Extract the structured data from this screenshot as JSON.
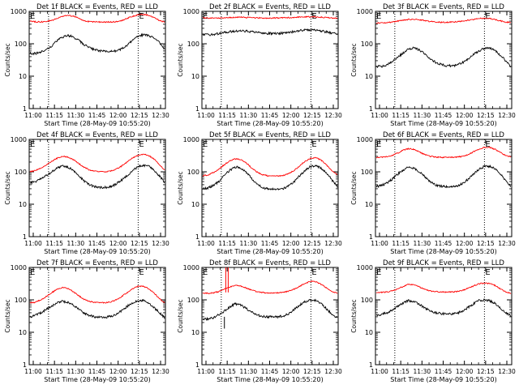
{
  "figure": {
    "background": "#ffffff",
    "colors": {
      "events": "#000000",
      "lld": "#ff0000",
      "axes": "#000000"
    }
  },
  "chart_data": [
    {
      "type": "line",
      "title": "Det 1f BLACK = Events, RED = LLD",
      "xlabel": "Start Time (28-May-09 10:55:20)",
      "ylabel": "Counts/sec",
      "xlim": [
        0,
        100
      ],
      "ylim": [
        1,
        1000
      ],
      "yscale": "log",
      "x_ticks": [
        "11:00",
        "11:15",
        "11:30",
        "11:45",
        "12:00",
        "12:15",
        "12:30"
      ],
      "y_ticks": [
        "1",
        "10",
        "100",
        "1000"
      ],
      "marker_label": "E",
      "markers": [
        14.2,
        80.0
      ],
      "series": [
        {
          "name": "Events",
          "color": "#000000",
          "values": [
            50,
            50,
            55,
            65,
            85,
            120,
            160,
            180,
            165,
            130,
            95,
            75,
            65,
            60,
            58,
            57,
            60,
            70,
            90,
            125,
            165,
            190,
            180,
            150,
            110,
            70
          ]
        },
        {
          "name": "LLD",
          "color": "#ff0000",
          "values": [
            500,
            480,
            470,
            490,
            520,
            600,
            700,
            760,
            710,
            620,
            520,
            480,
            470,
            470,
            470,
            470,
            480,
            520,
            600,
            700,
            780,
            800,
            760,
            650,
            520,
            470
          ]
        }
      ]
    },
    {
      "type": "line",
      "title": "Det 2f BLACK = Events, RED = LLD",
      "xlabel": "Start Time (28-May-09 10:55:20)",
      "ylabel": "Counts/sec",
      "xlim": [
        0,
        100
      ],
      "ylim": [
        1,
        1000
      ],
      "yscale": "log",
      "x_ticks": [
        "11:00",
        "11:15",
        "11:30",
        "11:45",
        "12:00",
        "12:15",
        "12:30"
      ],
      "y_ticks": [
        "1",
        "10",
        "100",
        "1000"
      ],
      "marker_label": "E",
      "markers": [
        14.2,
        80.0
      ],
      "series": [
        {
          "name": "Events",
          "color": "#000000",
          "values": [
            190,
            190,
            195,
            205,
            220,
            235,
            245,
            250,
            245,
            235,
            225,
            215,
            210,
            210,
            210,
            215,
            225,
            240,
            255,
            265,
            270,
            265,
            250,
            230,
            210,
            200
          ]
        },
        {
          "name": "LLD",
          "color": "#ff0000",
          "values": [
            620,
            620,
            610,
            615,
            630,
            640,
            650,
            660,
            650,
            640,
            630,
            625,
            620,
            620,
            625,
            630,
            640,
            655,
            665,
            675,
            680,
            675,
            660,
            640,
            620,
            610
          ]
        }
      ]
    },
    {
      "type": "line",
      "title": "Det 3f BLACK = Events, RED = LLD",
      "xlabel": "Start Time (28-May-09 10:55:20)",
      "ylabel": "Counts/sec",
      "xlim": [
        0,
        100
      ],
      "ylim": [
        1,
        1000
      ],
      "yscale": "log",
      "x_ticks": [
        "11:00",
        "11:15",
        "11:30",
        "11:45",
        "12:00",
        "12:15",
        "12:30"
      ],
      "y_ticks": [
        "1",
        "10",
        "100",
        "1000"
      ],
      "marker_label": "E",
      "markers": [
        14.2,
        80.0
      ],
      "series": [
        {
          "name": "Events",
          "color": "#000000",
          "values": [
            20,
            20,
            22,
            28,
            38,
            52,
            68,
            75,
            65,
            48,
            35,
            27,
            23,
            21,
            21,
            22,
            26,
            34,
            46,
            60,
            72,
            75,
            62,
            45,
            30,
            20
          ]
        },
        {
          "name": "LLD",
          "color": "#ff0000",
          "values": [
            440,
            440,
            450,
            470,
            500,
            530,
            560,
            570,
            550,
            520,
            490,
            470,
            460,
            460,
            470,
            480,
            500,
            530,
            560,
            600,
            620,
            600,
            560,
            510,
            470,
            450
          ]
        }
      ]
    },
    {
      "type": "line",
      "title": "Det 4f BLACK = Events, RED = LLD",
      "xlabel": "Start Time (28-May-09 10:55:20)",
      "ylabel": "Counts/sec",
      "xlim": [
        0,
        100
      ],
      "ylim": [
        1,
        1000
      ],
      "yscale": "log",
      "x_ticks": [
        "11:00",
        "11:15",
        "11:30",
        "11:45",
        "12:00",
        "12:15",
        "12:30"
      ],
      "y_ticks": [
        "1",
        "10",
        "100",
        "1000"
      ],
      "marker_label": "E",
      "markers": [
        14.2,
        80.0
      ],
      "series": [
        {
          "name": "Events",
          "color": "#000000",
          "values": [
            45,
            50,
            60,
            75,
            100,
            130,
            150,
            140,
            110,
            75,
            52,
            40,
            35,
            33,
            33,
            35,
            42,
            55,
            75,
            105,
            140,
            160,
            150,
            115,
            75,
            45
          ]
        },
        {
          "name": "LLD",
          "color": "#ff0000",
          "values": [
            100,
            110,
            130,
            160,
            210,
            260,
            300,
            290,
            240,
            180,
            140,
            115,
            105,
            100,
            100,
            105,
            120,
            150,
            200,
            260,
            320,
            350,
            320,
            250,
            170,
            110
          ]
        }
      ]
    },
    {
      "type": "line",
      "title": "Det 5f BLACK = Events, RED = LLD",
      "xlabel": "Start Time (28-May-09 10:55:20)",
      "ylabel": "Counts/sec",
      "xlim": [
        0,
        100
      ],
      "ylim": [
        1,
        1000
      ],
      "yscale": "log",
      "x_ticks": [
        "11:00",
        "11:15",
        "11:30",
        "11:45",
        "12:00",
        "12:15",
        "12:30"
      ],
      "y_ticks": [
        "1",
        "10",
        "100",
        "1000"
      ],
      "marker_label": "E",
      "markers": [
        14.2,
        80.0
      ],
      "series": [
        {
          "name": "Events",
          "color": "#000000",
          "values": [
            30,
            32,
            38,
            50,
            75,
            110,
            140,
            135,
            100,
            65,
            42,
            33,
            30,
            29,
            29,
            31,
            37,
            50,
            75,
            110,
            145,
            155,
            130,
            90,
            55,
            35
          ]
        },
        {
          "name": "LLD",
          "color": "#ff0000",
          "values": [
            75,
            80,
            95,
            120,
            165,
            215,
            250,
            240,
            190,
            135,
            100,
            82,
            76,
            74,
            74,
            77,
            88,
            110,
            150,
            210,
            260,
            270,
            230,
            160,
            105,
            80
          ]
        }
      ]
    },
    {
      "type": "line",
      "title": "Det 6f BLACK = Events, RED = LLD",
      "xlabel": "Start Time (28-May-09 10:55:20)",
      "ylabel": "Counts/sec",
      "xlim": [
        0,
        100
      ],
      "ylim": [
        1,
        1000
      ],
      "yscale": "log",
      "x_ticks": [
        "11:00",
        "11:15",
        "11:30",
        "11:45",
        "12:00",
        "12:15",
        "12:30"
      ],
      "y_ticks": [
        "1",
        "10",
        "100",
        "1000"
      ],
      "marker_label": "E",
      "markers": [
        14.2,
        80.0
      ],
      "series": [
        {
          "name": "Events",
          "color": "#000000",
          "values": [
            35,
            38,
            45,
            60,
            85,
            115,
            140,
            130,
            100,
            70,
            50,
            40,
            36,
            35,
            35,
            37,
            44,
            58,
            82,
            115,
            145,
            150,
            125,
            85,
            55,
            35
          ]
        },
        {
          "name": "LLD",
          "color": "#ff0000",
          "values": [
            280,
            280,
            290,
            320,
            380,
            460,
            520,
            490,
            410,
            340,
            300,
            285,
            280,
            280,
            280,
            285,
            300,
            340,
            410,
            490,
            560,
            570,
            500,
            400,
            320,
            290
          ]
        }
      ]
    },
    {
      "type": "line",
      "title": "Det 7f BLACK = Events, RED = LLD",
      "xlabel": "Start Time (28-May-09 10:55:20)",
      "ylabel": "Counts/sec",
      "xlim": [
        0,
        100
      ],
      "ylim": [
        1,
        1000
      ],
      "yscale": "log",
      "x_ticks": [
        "11:00",
        "11:15",
        "11:30",
        "11:45",
        "12:00",
        "12:15",
        "12:30"
      ],
      "y_ticks": [
        "1",
        "10",
        "100",
        "1000"
      ],
      "marker_label": "E",
      "markers": [
        14.2,
        80.0
      ],
      "series": [
        {
          "name": "Events",
          "color": "#000000",
          "values": [
            30,
            33,
            40,
            50,
            65,
            80,
            90,
            85,
            70,
            52,
            40,
            33,
            30,
            29,
            29,
            31,
            36,
            46,
            62,
            80,
            95,
            95,
            80,
            58,
            40,
            28
          ]
        },
        {
          "name": "LLD",
          "color": "#ff0000",
          "values": [
            80,
            85,
            100,
            125,
            165,
            210,
            240,
            225,
            180,
            135,
            105,
            90,
            84,
            82,
            82,
            86,
            100,
            125,
            165,
            215,
            260,
            265,
            220,
            160,
            110,
            80
          ]
        }
      ]
    },
    {
      "type": "line",
      "title": "Det 8f BLACK = Events, RED = LLD",
      "xlabel": "Start Time (28-May-09 10:55:20)",
      "ylabel": "Counts/sec",
      "xlim": [
        0,
        100
      ],
      "ylim": [
        1,
        1000
      ],
      "yscale": "log",
      "x_ticks": [
        "11:00",
        "11:15",
        "11:30",
        "11:45",
        "12:00",
        "12:15",
        "12:30"
      ],
      "y_ticks": [
        "1",
        "10",
        "100",
        "1000"
      ],
      "marker_label": "E",
      "markers": [
        14.2,
        80.0
      ],
      "series": [
        {
          "name": "Events",
          "color": "#000000",
          "values": [
            25,
            26,
            28,
            35,
            45,
            60,
            75,
            70,
            55,
            42,
            35,
            31,
            30,
            30,
            30,
            32,
            38,
            50,
            68,
            88,
            100,
            95,
            75,
            52,
            36,
            28
          ]
        },
        {
          "name": "LLD",
          "color": "#ff0000",
          "values": [
            160,
            160,
            165,
            180,
            210,
            250,
            280,
            270,
            235,
            200,
            180,
            170,
            165,
            165,
            165,
            170,
            185,
            215,
            260,
            320,
            370,
            360,
            300,
            230,
            180,
            160
          ]
        }
      ]
    },
    {
      "type": "line",
      "title": "Det 9f BLACK = Events, RED = LLD",
      "xlabel": "Start Time (28-May-09 10:55:20)",
      "ylabel": "Counts/sec",
      "xlim": [
        0,
        100
      ],
      "ylim": [
        1,
        1000
      ],
      "yscale": "log",
      "x_ticks": [
        "11:00",
        "11:15",
        "11:30",
        "11:45",
        "12:00",
        "12:15",
        "12:30"
      ],
      "y_ticks": [
        "1",
        "10",
        "100",
        "1000"
      ],
      "marker_label": "E",
      "markers": [
        14.2,
        80.0
      ],
      "series": [
        {
          "name": "Events",
          "color": "#000000",
          "values": [
            35,
            36,
            40,
            48,
            62,
            80,
            95,
            90,
            72,
            55,
            45,
            40,
            38,
            37,
            37,
            39,
            45,
            57,
            75,
            95,
            100,
            95,
            78,
            55,
            40,
            32
          ]
        },
        {
          "name": "LLD",
          "color": "#ff0000",
          "values": [
            170,
            170,
            175,
            190,
            220,
            260,
            300,
            290,
            250,
            210,
            190,
            180,
            175,
            175,
            175,
            180,
            195,
            225,
            265,
            310,
            330,
            320,
            280,
            220,
            180,
            160
          ]
        }
      ]
    }
  ]
}
